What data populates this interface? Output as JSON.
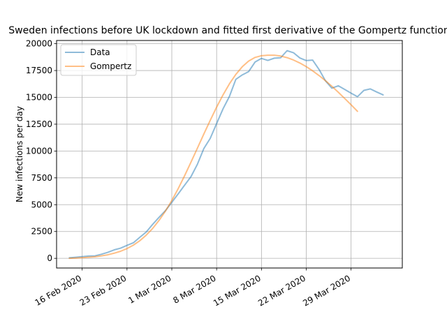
{
  "chart_data": {
    "type": "line",
    "title": "Sweden infections before UK lockdown and fitted first derivative of the Gompertz function",
    "xlabel": "",
    "ylabel": "New infections per day",
    "x_start": "2020-02-14",
    "x_tick_labels": [
      "16 Feb 2020",
      "23 Feb 2020",
      "1 Mar 2020",
      "8 Mar 2020",
      "15 Mar 2020",
      "22 Mar 2020",
      "29 Mar 2020"
    ],
    "x_tick_dates": [
      "2020-02-16",
      "2020-02-23",
      "2020-03-01",
      "2020-03-08",
      "2020-03-15",
      "2020-03-22",
      "2020-03-29"
    ],
    "xlim": [
      "2020-02-12",
      "2020-04-06"
    ],
    "y_ticks": [
      0,
      2500,
      5000,
      7500,
      10000,
      12500,
      15000,
      17500,
      20000
    ],
    "y_tick_labels": [
      "0",
      "2500",
      "5000",
      "7500",
      "10000",
      "12500",
      "15000",
      "17500",
      "20000"
    ],
    "ylim": [
      -900,
      20300
    ],
    "grid": true,
    "legend": "top-left",
    "series": [
      {
        "name": "Data",
        "color": "#1f77b4",
        "values": [
          50,
          100,
          160,
          210,
          230,
          380,
          560,
          790,
          950,
          1210,
          1450,
          1960,
          2450,
          3160,
          3820,
          4440,
          5220,
          6010,
          6820,
          7620,
          8770,
          10230,
          11180,
          12560,
          13930,
          15090,
          16680,
          17090,
          17400,
          18290,
          18630,
          18440,
          18650,
          18690,
          19350,
          19160,
          18670,
          18430,
          18470,
          17600,
          16540,
          15860,
          16080,
          15740,
          15390,
          15060,
          15650,
          15790,
          15500,
          15230
        ]
      },
      {
        "name": "Gompertz",
        "color": "#ff7f0e",
        "values": [
          0,
          30,
          60,
          100,
          150,
          230,
          330,
          480,
          660,
          910,
          1230,
          1640,
          2160,
          2780,
          3530,
          4400,
          5390,
          6500,
          7700,
          8970,
          10270,
          11580,
          12860,
          14090,
          15230,
          16260,
          17140,
          17850,
          18380,
          18720,
          18880,
          18930,
          18930,
          18850,
          18700,
          18480,
          18200,
          17860,
          17470,
          17030,
          16550,
          16030,
          15480,
          14900,
          14310,
          13700
        ]
      }
    ]
  }
}
